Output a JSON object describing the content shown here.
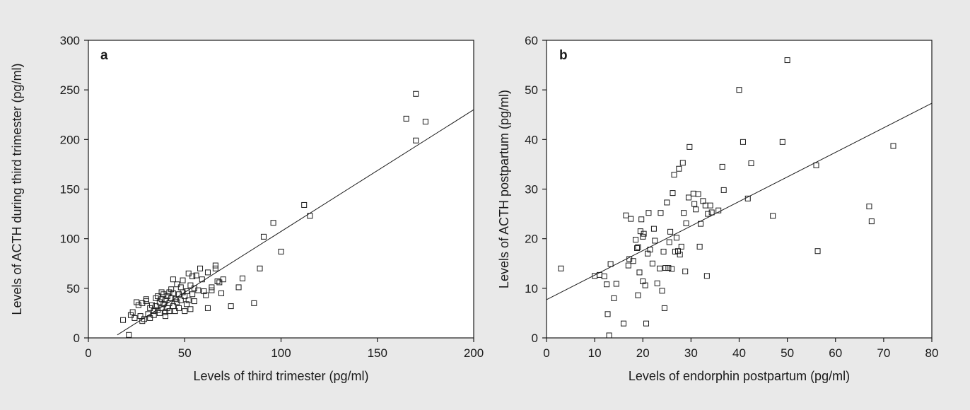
{
  "chart_data": [
    {
      "type": "scatter",
      "panel": "a",
      "title": "",
      "xlabel": "Levels of third trimester (pg/ml)",
      "ylabel": "Levels of ACTH during third trimester (pg/ml)",
      "xlim": [
        0,
        200
      ],
      "ylim": [
        0,
        300
      ],
      "xticks": [
        0,
        50,
        100,
        150,
        200
      ],
      "yticks": [
        0,
        50,
        100,
        150,
        200,
        250,
        300
      ],
      "grid": false,
      "regression_line": {
        "x": [
          15,
          200
        ],
        "y": [
          3,
          230
        ]
      },
      "points": [
        [
          18,
          18
        ],
        [
          21,
          3
        ],
        [
          22,
          23
        ],
        [
          23,
          26
        ],
        [
          24,
          20
        ],
        [
          25,
          36
        ],
        [
          26,
          33
        ],
        [
          27,
          22
        ],
        [
          28,
          17
        ],
        [
          28,
          35
        ],
        [
          29,
          19
        ],
        [
          30,
          37
        ],
        [
          30,
          39
        ],
        [
          31,
          24
        ],
        [
          32,
          30
        ],
        [
          32,
          20
        ],
        [
          33,
          33
        ],
        [
          34,
          27
        ],
        [
          34,
          23
        ],
        [
          35,
          40
        ],
        [
          35,
          32
        ],
        [
          36,
          42
        ],
        [
          36,
          28
        ],
        [
          37,
          25
        ],
        [
          37,
          36
        ],
        [
          38,
          46
        ],
        [
          38,
          30
        ],
        [
          38,
          39
        ],
        [
          39,
          34
        ],
        [
          39,
          44
        ],
        [
          40,
          26
        ],
        [
          40,
          38
        ],
        [
          40,
          22
        ],
        [
          41,
          42
        ],
        [
          41,
          30
        ],
        [
          42,
          46
        ],
        [
          42,
          35
        ],
        [
          42,
          27
        ],
        [
          43,
          40
        ],
        [
          43,
          49
        ],
        [
          44,
          32
        ],
        [
          44,
          59
        ],
        [
          44,
          45
        ],
        [
          45,
          27
        ],
        [
          45,
          39
        ],
        [
          46,
          36
        ],
        [
          46,
          54
        ],
        [
          47,
          44
        ],
        [
          47,
          30
        ],
        [
          48,
          51
        ],
        [
          48,
          38
        ],
        [
          49,
          46
        ],
        [
          49,
          58
        ],
        [
          50,
          27
        ],
        [
          50,
          42
        ],
        [
          51,
          34
        ],
        [
          51,
          47
        ],
        [
          52,
          65
        ],
        [
          52,
          38
        ],
        [
          53,
          53
        ],
        [
          53,
          29
        ],
        [
          54,
          62
        ],
        [
          54,
          44
        ],
        [
          55,
          50
        ],
        [
          55,
          37
        ],
        [
          56,
          63
        ],
        [
          57,
          48
        ],
        [
          58,
          70
        ],
        [
          59,
          59
        ],
        [
          60,
          47
        ],
        [
          61,
          43
        ],
        [
          62,
          30
        ],
        [
          62,
          66
        ],
        [
          64,
          51
        ],
        [
          64,
          48
        ],
        [
          66,
          73
        ],
        [
          66,
          70
        ],
        [
          67,
          57
        ],
        [
          68,
          56
        ],
        [
          69,
          45
        ],
        [
          70,
          59
        ],
        [
          74,
          32
        ],
        [
          78,
          51
        ],
        [
          80,
          60
        ],
        [
          86,
          35
        ],
        [
          89,
          70
        ],
        [
          91,
          102
        ],
        [
          96,
          116
        ],
        [
          100,
          87
        ],
        [
          112,
          134
        ],
        [
          115,
          123
        ],
        [
          165,
          221
        ],
        [
          170,
          199
        ],
        [
          170,
          246
        ],
        [
          175,
          218
        ]
      ]
    },
    {
      "type": "scatter",
      "panel": "b",
      "title": "",
      "xlabel": "Levels of endorphin postpartum (pg/ml)",
      "ylabel": "Levels of ACTH postpartum (pg/ml)",
      "xlim": [
        0,
        80
      ],
      "ylim": [
        0,
        60
      ],
      "xticks": [
        0,
        10,
        20,
        30,
        40,
        50,
        60,
        70,
        80
      ],
      "yticks": [
        0,
        10,
        20,
        30,
        40,
        50,
        60
      ],
      "grid": false,
      "regression_line": {
        "x": [
          0,
          80
        ],
        "y": [
          7.7,
          47.3
        ]
      },
      "points": [
        [
          3,
          14
        ],
        [
          10,
          12.5
        ],
        [
          11,
          12.7
        ],
        [
          12,
          12.4
        ],
        [
          12.5,
          10.8
        ],
        [
          12.7,
          4.8
        ],
        [
          13,
          0.5
        ],
        [
          13.3,
          14.9
        ],
        [
          14,
          8
        ],
        [
          14.5,
          10.9
        ],
        [
          16,
          2.9
        ],
        [
          16.5,
          24.7
        ],
        [
          17,
          14.6
        ],
        [
          17.2,
          15.9
        ],
        [
          17.5,
          24
        ],
        [
          18,
          15.5
        ],
        [
          18.5,
          19.8
        ],
        [
          18.8,
          18.1
        ],
        [
          19,
          18.3
        ],
        [
          19,
          8.6
        ],
        [
          19.3,
          13.2
        ],
        [
          19.5,
          21.5
        ],
        [
          19.7,
          23.9
        ],
        [
          20,
          11.4
        ],
        [
          20,
          20.4
        ],
        [
          20.2,
          21
        ],
        [
          20.5,
          10.6
        ],
        [
          20.7,
          2.9
        ],
        [
          21,
          17
        ],
        [
          21.2,
          25.2
        ],
        [
          21.5,
          17.8
        ],
        [
          22,
          15
        ],
        [
          22.3,
          22
        ],
        [
          22.5,
          19.6
        ],
        [
          23,
          11
        ],
        [
          23.5,
          14
        ],
        [
          23.7,
          25.2
        ],
        [
          24,
          9.5
        ],
        [
          24.3,
          17.4
        ],
        [
          24.5,
          6
        ],
        [
          24.7,
          14.1
        ],
        [
          25,
          27.3
        ],
        [
          25.3,
          14.1
        ],
        [
          25.5,
          19.3
        ],
        [
          25.7,
          21.4
        ],
        [
          26,
          13.9
        ],
        [
          26.2,
          29.2
        ],
        [
          26.5,
          32.9
        ],
        [
          26.7,
          17.4
        ],
        [
          27,
          20.2
        ],
        [
          27.3,
          17.5
        ],
        [
          27.5,
          34.1
        ],
        [
          27.7,
          16.8
        ],
        [
          28,
          18.4
        ],
        [
          28.3,
          35.3
        ],
        [
          28.5,
          25.2
        ],
        [
          28.8,
          13.4
        ],
        [
          29,
          23.1
        ],
        [
          29.5,
          28.3
        ],
        [
          29.7,
          38.5
        ],
        [
          30.5,
          29.1
        ],
        [
          30.7,
          27
        ],
        [
          31,
          25.9
        ],
        [
          31.5,
          29
        ],
        [
          31.8,
          18.4
        ],
        [
          32,
          23
        ],
        [
          32.5,
          27.6
        ],
        [
          33,
          26.7
        ],
        [
          33.3,
          12.5
        ],
        [
          33.5,
          25
        ],
        [
          34,
          26.7
        ],
        [
          34.3,
          25.3
        ],
        [
          35.7,
          25.7
        ],
        [
          36.5,
          34.5
        ],
        [
          36.8,
          29.8
        ],
        [
          40,
          50
        ],
        [
          40.8,
          39.5
        ],
        [
          41.8,
          28.1
        ],
        [
          42.5,
          35.2
        ],
        [
          47,
          24.6
        ],
        [
          49,
          39.5
        ],
        [
          50,
          56
        ],
        [
          56,
          34.8
        ],
        [
          56.3,
          17.5
        ],
        [
          67,
          26.5
        ],
        [
          67.5,
          23.5
        ],
        [
          72,
          38.7
        ]
      ]
    }
  ]
}
